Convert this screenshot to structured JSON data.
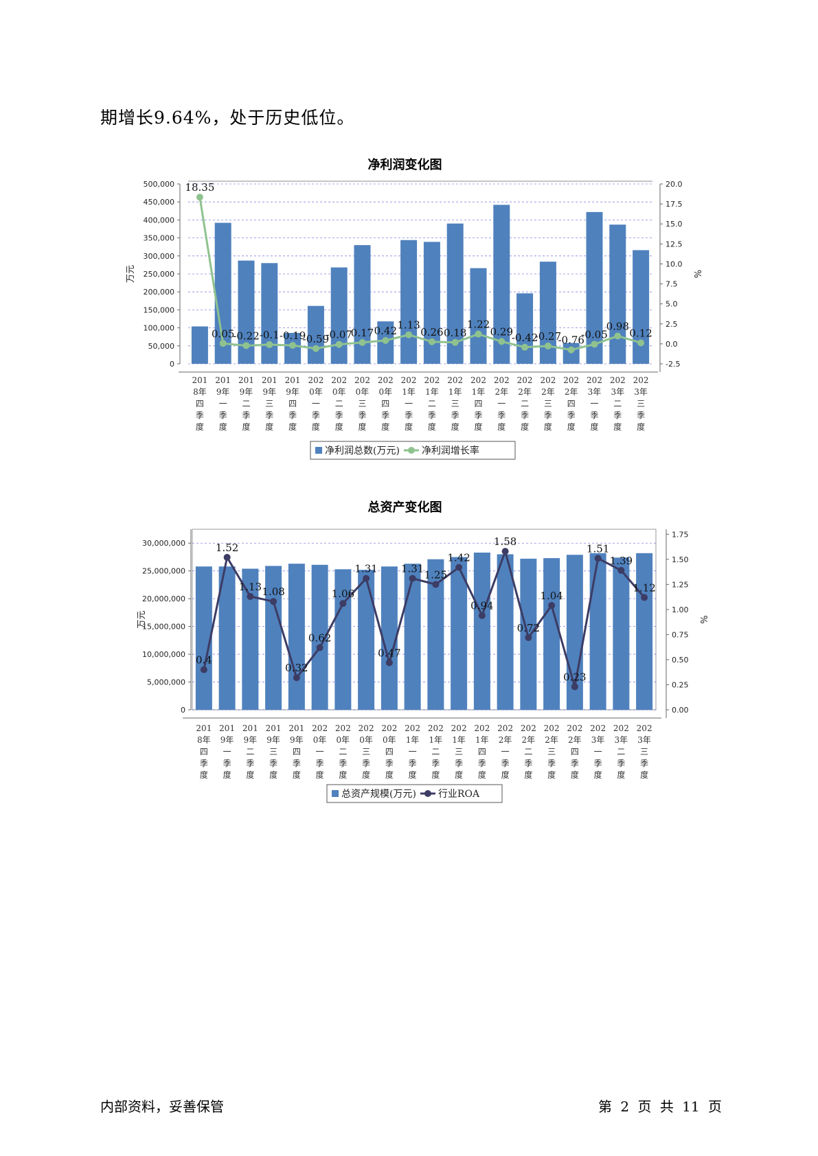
{
  "page": {
    "intro_text": "期增长9.64%，处于历史低位。",
    "footer_left": "内部资料，妥善保管",
    "footer_right": "第 2 页  共 11 页"
  },
  "colors": {
    "bar": "#4f81bd",
    "line1": "#8fc28f",
    "line2": "#3c3c64",
    "grid": "#3333cc"
  },
  "chart_data": [
    {
      "type": "bar",
      "title": "净利润变化图",
      "ylabel": "万元",
      "y2label": "%",
      "ylim": [
        0,
        500000
      ],
      "y2lim": [
        -2.5,
        20.0
      ],
      "y_ticks": [
        "0",
        "50,000",
        "100,000",
        "150,000",
        "200,000",
        "250,000",
        "300,000",
        "350,000",
        "400,000",
        "450,000",
        "500,000"
      ],
      "y2_ticks": [
        "-2.5",
        "0.0",
        "2.5",
        "5.0",
        "7.5",
        "10.0",
        "12.5",
        "15.0",
        "17.5",
        "20.0"
      ],
      "categories": [
        [
          "201",
          "8年",
          "四",
          "季",
          "度"
        ],
        [
          "201",
          "9年",
          "一",
          "季",
          "度"
        ],
        [
          "201",
          "9年",
          "二",
          "季",
          "度"
        ],
        [
          "201",
          "9年",
          "三",
          "季",
          "度"
        ],
        [
          "201",
          "9年",
          "四",
          "季",
          "度"
        ],
        [
          "202",
          "0年",
          "一",
          "季",
          "度"
        ],
        [
          "202",
          "0年",
          "二",
          "季",
          "度"
        ],
        [
          "202",
          "0年",
          "三",
          "季",
          "度"
        ],
        [
          "202",
          "0年",
          "四",
          "季",
          "度"
        ],
        [
          "202",
          "1年",
          "一",
          "季",
          "度"
        ],
        [
          "202",
          "1年",
          "二",
          "季",
          "度"
        ],
        [
          "202",
          "1年",
          "三",
          "季",
          "度"
        ],
        [
          "202",
          "1年",
          "四",
          "季",
          "度"
        ],
        [
          "202",
          "2年",
          "一",
          "季",
          "度"
        ],
        [
          "202",
          "2年",
          "二",
          "季",
          "度"
        ],
        [
          "202",
          "2年",
          "三",
          "季",
          "度"
        ],
        [
          "202",
          "2年",
          "四",
          "季",
          "度"
        ],
        [
          "202",
          "3年",
          "一",
          "季",
          "度"
        ],
        [
          "202",
          "3年",
          "二",
          "季",
          "度"
        ],
        [
          "202",
          "3年",
          "三",
          "季",
          "度"
        ]
      ],
      "series": [
        {
          "name": "净利润总数(万元)",
          "kind": "bar",
          "values": [
            104000,
            392000,
            287000,
            280000,
            86000,
            161000,
            268000,
            330000,
            118000,
            344000,
            339000,
            390000,
            266000,
            442000,
            196000,
            284000,
            58000,
            422000,
            387000,
            316000
          ]
        },
        {
          "name": "净利润增长率",
          "kind": "line",
          "values": [
            18.35,
            0.05,
            -0.22,
            -0.1,
            -0.19,
            -0.59,
            -0.07,
            0.17,
            0.42,
            1.13,
            0.26,
            0.18,
            1.22,
            0.29,
            -0.42,
            -0.27,
            -0.76,
            -0.05,
            0.98,
            0.12
          ],
          "labels": [
            "18.35",
            "0.05",
            "-0.22",
            "-0.1",
            "-0.19",
            "-0.59",
            "-0.07",
            "0.17",
            "0.42",
            "1.13",
            "0.26",
            "0.18",
            "1.22",
            "0.29",
            "-0.42",
            "-0.27",
            "-0.76",
            "-0.05",
            "0.98",
            "0.12"
          ]
        }
      ],
      "legend": "bottom",
      "grid": true
    },
    {
      "type": "bar",
      "title": "总资产变化图",
      "ylabel": "万元",
      "y2label": "%",
      "ylim": [
        0,
        32500000
      ],
      "y2lim": [
        0,
        1.8
      ],
      "y_ticks": [
        "0",
        "5,000,000",
        "10,000,000",
        "15,000,000",
        "20,000,000",
        "25,000,000",
        "30,000,000"
      ],
      "y2_ticks": [
        "0.00",
        "0.25",
        "0.50",
        "0.75",
        "1.00",
        "1.25",
        "1.50",
        "1.75"
      ],
      "categories": [
        [
          "201",
          "8年",
          "四",
          "季",
          "度"
        ],
        [
          "201",
          "9年",
          "一",
          "季",
          "度"
        ],
        [
          "201",
          "9年",
          "二",
          "季",
          "度"
        ],
        [
          "201",
          "9年",
          "三",
          "季",
          "度"
        ],
        [
          "201",
          "9年",
          "四",
          "季",
          "度"
        ],
        [
          "202",
          "0年",
          "一",
          "季",
          "度"
        ],
        [
          "202",
          "0年",
          "二",
          "季",
          "度"
        ],
        [
          "202",
          "0年",
          "三",
          "季",
          "度"
        ],
        [
          "202",
          "0年",
          "四",
          "季",
          "度"
        ],
        [
          "202",
          "1年",
          "一",
          "季",
          "度"
        ],
        [
          "202",
          "1年",
          "二",
          "季",
          "度"
        ],
        [
          "202",
          "1年",
          "三",
          "季",
          "度"
        ],
        [
          "202",
          "1年",
          "四",
          "季",
          "度"
        ],
        [
          "202",
          "2年",
          "一",
          "季",
          "度"
        ],
        [
          "202",
          "2年",
          "二",
          "季",
          "度"
        ],
        [
          "202",
          "2年",
          "三",
          "季",
          "度"
        ],
        [
          "202",
          "2年",
          "四",
          "季",
          "度"
        ],
        [
          "202",
          "3年",
          "一",
          "季",
          "度"
        ],
        [
          "202",
          "3年",
          "二",
          "季",
          "度"
        ],
        [
          "202",
          "3年",
          "三",
          "季",
          "度"
        ]
      ],
      "series": [
        {
          "name": "总资产规模(万元)",
          "kind": "bar",
          "values": [
            25800000,
            25800000,
            25400000,
            25900000,
            26300000,
            26100000,
            25300000,
            25200000,
            25800000,
            26300000,
            27100000,
            27500000,
            28300000,
            28000000,
            27200000,
            27300000,
            27900000,
            28200000,
            27400000,
            28200000
          ]
        },
        {
          "name": "行业ROA",
          "kind": "line",
          "values": [
            0.4,
            1.52,
            1.13,
            1.08,
            0.32,
            0.62,
            1.06,
            1.31,
            0.47,
            1.31,
            1.25,
            1.42,
            0.94,
            1.58,
            0.72,
            1.04,
            0.23,
            1.51,
            1.39,
            1.12
          ],
          "labels": [
            "0.4",
            "1.52",
            "1.13",
            "1.08",
            "0.32",
            "0.62",
            "1.06",
            "1.31",
            "0.47",
            "1.31",
            "1.25",
            "1.42",
            "0.94",
            "1.58",
            "0.72",
            "1.04",
            "0.23",
            "1.51",
            "1.39",
            "1.12"
          ]
        }
      ],
      "legend": "bottom",
      "grid": true
    }
  ]
}
